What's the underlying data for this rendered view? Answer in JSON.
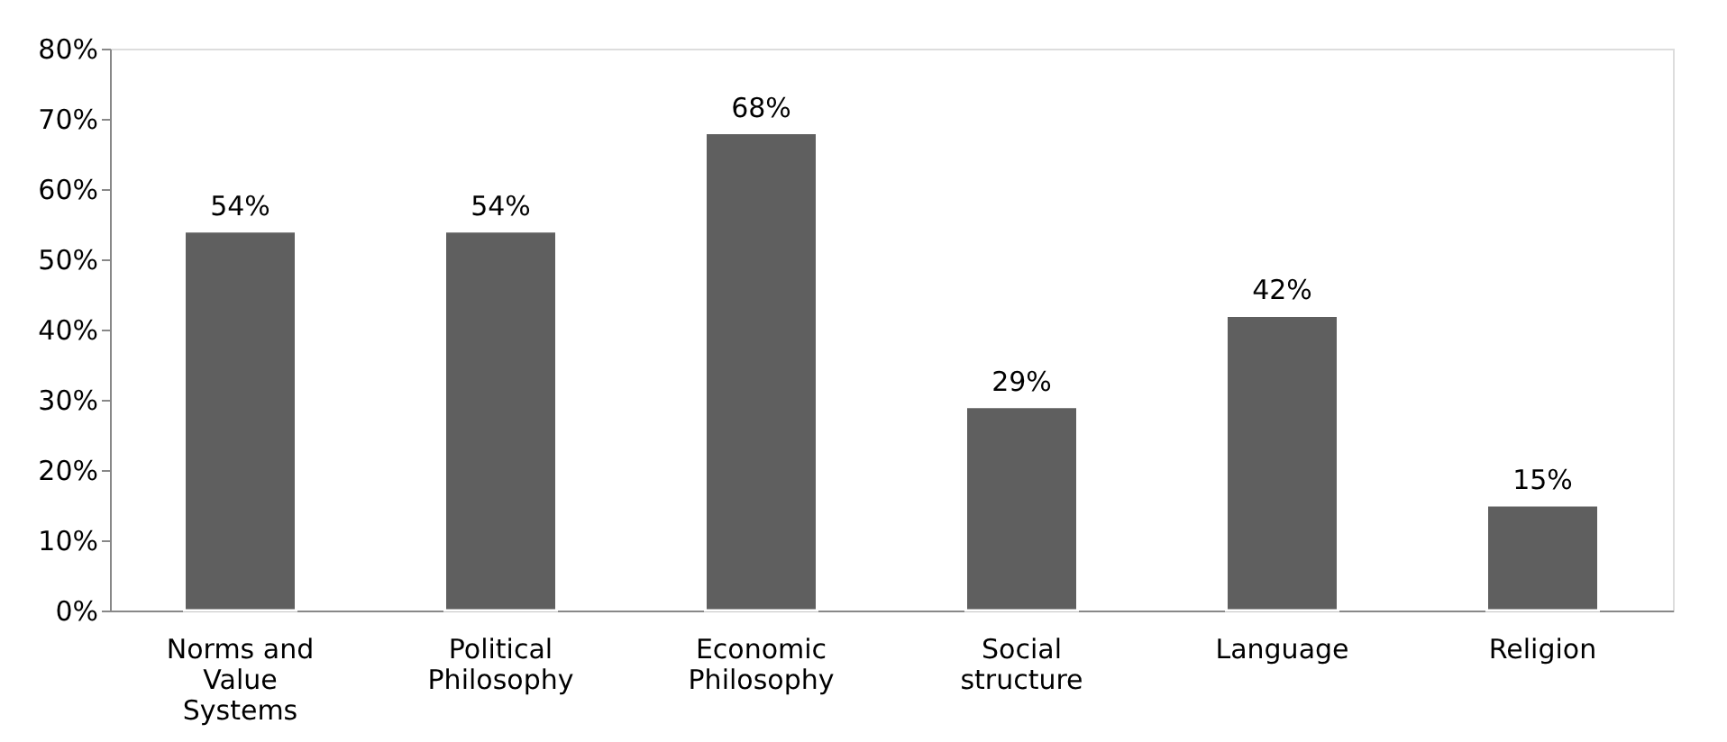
{
  "chart_data": {
    "type": "bar",
    "categories": [
      "Norms and Value Systems",
      "Political Philosophy",
      "Economic Philosophy",
      "Social structure",
      "Language",
      "Religion"
    ],
    "values": [
      54,
      54,
      68,
      29,
      42,
      15
    ],
    "value_labels": [
      "54%",
      "54%",
      "68%",
      "29%",
      "42%",
      "15%"
    ],
    "color": "#5f5f5f",
    "ylim": [
      0,
      80
    ],
    "yticks": [
      {
        "value": 0,
        "label": "0%"
      },
      {
        "value": 10,
        "label": "10%"
      },
      {
        "value": 20,
        "label": "20%"
      },
      {
        "value": 30,
        "label": "30%"
      },
      {
        "value": 40,
        "label": "40%"
      },
      {
        "value": 50,
        "label": "50%"
      },
      {
        "value": 60,
        "label": "60%"
      },
      {
        "value": 70,
        "label": "70%"
      },
      {
        "value": 80,
        "label": "80%"
      }
    ],
    "grid": false
  }
}
